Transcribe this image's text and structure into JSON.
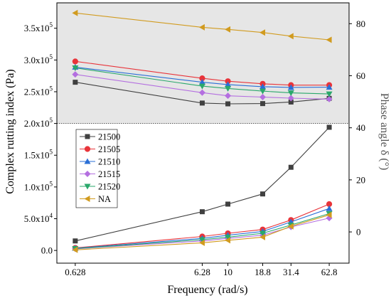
{
  "chart_data": {
    "type": "line",
    "xlabel": "Frequency (rad/s)",
    "ylabel_left": "Complex rutting index (Pa)",
    "ylabel_right": "Phase angle δ (°)",
    "x_scale": "log",
    "x": [
      0.628,
      6.28,
      10,
      18.8,
      31.4,
      62.8
    ],
    "x_tick_labels": [
      "0.628",
      "6.28",
      "10",
      "18.8",
      "31.4",
      "62.8"
    ],
    "ylim_left": [
      -20000,
      390000
    ],
    "ylim_right": [
      -12,
      88
    ],
    "y_ticks_left": [
      {
        "value": 0,
        "mant": "0.0",
        "exp": "0"
      },
      {
        "value": 50000,
        "mant": "5.0x10",
        "exp": "4"
      },
      {
        "value": 100000,
        "mant": "1.0x10",
        "exp": "5"
      },
      {
        "value": 150000,
        "mant": "1.5x10",
        "exp": "5"
      },
      {
        "value": 200000,
        "mant": "2.0x10",
        "exp": "5"
      },
      {
        "value": 250000,
        "mant": "2.5x10",
        "exp": "5"
      },
      {
        "value": 300000,
        "mant": "3.0x10",
        "exp": "5"
      },
      {
        "value": 350000,
        "mant": "3.5x10",
        "exp": "5"
      }
    ],
    "y_ticks_right": [
      0,
      20,
      40,
      60,
      80
    ],
    "shaded_region": {
      "axis": "left",
      "from": 200000,
      "color": "#e6e6e6"
    },
    "legend_position": "center-left",
    "series": [
      {
        "name": "21500",
        "color": "#404040",
        "marker": "square",
        "rutting": [
          15000,
          61000,
          73000,
          89000,
          131000,
          194000
        ],
        "phase": [
          57.5,
          49.5,
          49.2,
          49.3,
          49.9,
          51.3
        ]
      },
      {
        "name": "21505",
        "color": "#e8343a",
        "marker": "circle",
        "rutting": [
          4000,
          22000,
          27000,
          33000,
          48000,
          73000
        ],
        "phase": [
          65.5,
          59.0,
          57.9,
          56.9,
          56.4,
          56.4
        ]
      },
      {
        "name": "21510",
        "color": "#2a6fd6",
        "marker": "triangle-up",
        "rutting": [
          3500,
          19000,
          24000,
          30000,
          45000,
          66000
        ],
        "phase": [
          63.3,
          57.5,
          56.6,
          55.8,
          55.5,
          55.6
        ]
      },
      {
        "name": "21515",
        "color": "#b46fe0",
        "marker": "diamond",
        "rutting": [
          2500,
          15000,
          19000,
          24000,
          37000,
          51000
        ],
        "phase": [
          60.5,
          53.5,
          52.3,
          51.8,
          51.4,
          51.0
        ]
      },
      {
        "name": "21520",
        "color": "#2aa86b",
        "marker": "triangle-down",
        "rutting": [
          3000,
          17000,
          21000,
          27000,
          40000,
          58000
        ],
        "phase": [
          63.0,
          56.0,
          55.1,
          54.1,
          53.4,
          53.0
        ]
      },
      {
        "name": "NA",
        "color": "#d19b1f",
        "marker": "triangle-left",
        "rutting": [
          1000,
          12000,
          16000,
          21000,
          38000,
          56000
        ],
        "phase": [
          84.1,
          78.6,
          77.8,
          76.6,
          75.2,
          73.8
        ]
      }
    ]
  }
}
